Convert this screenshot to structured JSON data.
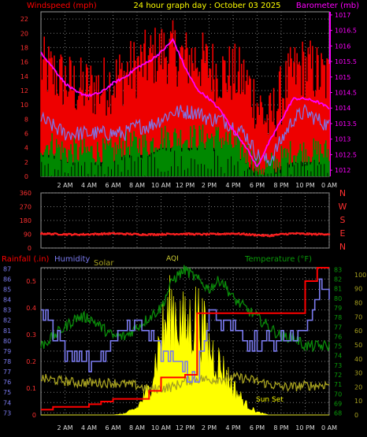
{
  "header": {
    "left_label": "Windspeed (mph)",
    "title": "24 hour graph day : October 03 2025",
    "right_label": "Barometer (mb)"
  },
  "colors": {
    "wind": "#ff0000",
    "gust_fill": "#ee0000",
    "avg_wind": "#008800",
    "baro": "#ff00ff",
    "baro_axis": "#ff00ff",
    "humidity": "#7a7aee",
    "dir": "#ff2020",
    "rain": "#ff0000",
    "temp": "#0a8a0a",
    "solar": "#ffff00",
    "solar_line": "#a6a020",
    "aqi": "#cccc33",
    "grid": "#777777"
  },
  "chart_data": [
    {
      "type": "line",
      "name_hint": "wind-barometer",
      "x_ticks": [
        "2 AM",
        "4 AM",
        "6 AM",
        "8 AM",
        "10 AM",
        "12 PM",
        "2 PM",
        "4 PM",
        "6 PM",
        "8 PM",
        "10 PM",
        "0 AM"
      ],
      "y_left_ticks": [
        0,
        2,
        4,
        6,
        8,
        10,
        12,
        14,
        16,
        18,
        20,
        22
      ],
      "y_left_range": [
        0,
        23
      ],
      "y_right_ticks": [
        1012,
        1012.5,
        1013,
        1013.5,
        1014,
        1014.5,
        1015,
        1015.5,
        1016,
        1016.5,
        1017
      ],
      "y_right_range": [
        1011.8,
        1017.1
      ],
      "gust_series_hours": [
        0,
        1,
        2,
        3,
        4,
        5,
        6,
        7,
        8,
        9,
        10,
        11,
        12,
        13,
        14,
        15,
        16,
        17,
        18,
        19,
        20,
        21,
        22,
        23,
        24
      ],
      "gust_series_values": [
        14,
        13,
        12,
        11,
        11,
        11,
        12,
        13,
        14,
        15,
        16,
        16,
        15,
        15,
        14,
        13,
        13,
        12,
        9,
        6,
        10,
        13,
        14,
        13,
        12
      ],
      "avg_wind_values": [
        4,
        4,
        3,
        3,
        3,
        3,
        3,
        4,
        4,
        4,
        5,
        5,
        5,
        5,
        5,
        5,
        4,
        3,
        1,
        1,
        2,
        3,
        3,
        3,
        3
      ],
      "speed_values": [
        8,
        7,
        6,
        6,
        6,
        6,
        6,
        6,
        7,
        7,
        8,
        9,
        9,
        9,
        8,
        8,
        7,
        6,
        3,
        2,
        5,
        8,
        9,
        8,
        7
      ],
      "baro_values": [
        1015.8,
        1015.3,
        1014.8,
        1014.5,
        1014.4,
        1014.5,
        1014.8,
        1015.0,
        1015.3,
        1015.5,
        1015.8,
        1016.2,
        1015.3,
        1014.6,
        1014.3,
        1013.9,
        1013.3,
        1012.8,
        1012.1,
        1012.9,
        1013.6,
        1014.3,
        1014.3,
        1014.2,
        1014.0
      ]
    },
    {
      "type": "scatter",
      "name_hint": "wind-direction",
      "y_ticks": [
        0,
        90,
        180,
        270,
        360
      ],
      "y_range": [
        0,
        360
      ],
      "compass_labels": [
        "N",
        "W",
        "S",
        "E",
        "N"
      ],
      "hours": [
        0,
        1,
        2,
        3,
        4,
        5,
        6,
        7,
        8,
        9,
        10,
        11,
        12,
        13,
        14,
        15,
        16,
        17,
        18,
        19,
        20,
        21,
        22,
        23,
        24
      ],
      "values": [
        95,
        92,
        90,
        88,
        90,
        92,
        95,
        92,
        90,
        88,
        90,
        92,
        93,
        90,
        90,
        92,
        95,
        90,
        85,
        80,
        90,
        95,
        92,
        90,
        92
      ]
    },
    {
      "type": "line",
      "name_hint": "rain-humidity-solar-temp",
      "labels": {
        "rain": "Rainfall (.in)",
        "humidity": "Humidity",
        "solar": "Solar",
        "aqi": "AQI",
        "temp": "Temperature (°F)",
        "sunset": "Sun Set"
      },
      "y_rain_ticks": [
        0,
        0.1,
        0.2,
        0.3,
        0.4,
        0.5
      ],
      "y_rain_range": [
        0,
        0.55
      ],
      "y_hum_ticks": [
        73,
        74,
        75,
        76,
        77,
        78,
        79,
        80,
        81,
        82,
        83,
        84,
        85,
        86,
        87
      ],
      "y_hum_range": [
        72.8,
        87.1
      ],
      "y_temp_ticks": [
        68,
        69,
        70,
        71,
        72,
        73,
        74,
        75,
        76,
        77,
        78,
        79,
        80,
        81,
        82,
        83
      ],
      "y_temp_range": [
        67.8,
        83.2
      ],
      "y_solar_ticks": [
        0,
        10,
        20,
        30,
        40,
        50,
        60,
        70,
        80,
        90,
        100
      ],
      "y_solar_range": [
        0,
        105
      ],
      "hours": [
        0,
        1,
        2,
        3,
        4,
        5,
        6,
        7,
        8,
        9,
        10,
        11,
        12,
        13,
        14,
        15,
        16,
        17,
        18,
        19,
        20,
        21,
        22,
        23,
        24
      ],
      "rain_values": [
        0.02,
        0.03,
        0.03,
        0.03,
        0.04,
        0.05,
        0.06,
        0.06,
        0.06,
        0.09,
        0.14,
        0.14,
        0.15,
        0.38,
        0.38,
        0.38,
        0.38,
        0.38,
        0.38,
        0.38,
        0.38,
        0.38,
        0.5,
        0.55,
        0.55
      ],
      "humidity_values": [
        83,
        81,
        79,
        78,
        78,
        78,
        80,
        81,
        82,
        81,
        79,
        78,
        77,
        77,
        83,
        82,
        81,
        80,
        80,
        80,
        80,
        80,
        81,
        85,
        85
      ],
      "temp_values": [
        75,
        76,
        77,
        78,
        78,
        77,
        76,
        76,
        77,
        78,
        79,
        82,
        83,
        82,
        81,
        82,
        80,
        79,
        78,
        77,
        76,
        76,
        75,
        75,
        75
      ],
      "solar_values": [
        0,
        0,
        0,
        0,
        0,
        0,
        0,
        1,
        5,
        18,
        55,
        75,
        60,
        70,
        48,
        34,
        20,
        8,
        2,
        0,
        0,
        0,
        0,
        0,
        0
      ],
      "solar_line_values": [
        26,
        25,
        24,
        23,
        23,
        23,
        23,
        22,
        21,
        18,
        19,
        20,
        24,
        26,
        25,
        26,
        27,
        26,
        24,
        22,
        20,
        20,
        21,
        21,
        22
      ],
      "aqi_values": [
        0,
        0,
        0,
        0,
        0,
        0,
        0,
        0,
        0,
        0,
        0,
        0,
        0,
        0,
        0,
        0,
        0,
        0,
        0,
        0,
        0,
        0,
        0,
        0,
        0
      ]
    }
  ]
}
